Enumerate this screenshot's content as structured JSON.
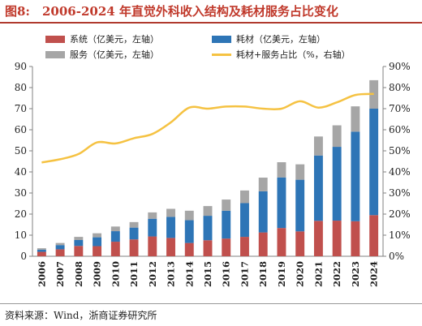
{
  "figure": {
    "title": "图8:　2006-2024 年直觉外科收入结构及耗材服务占比变化",
    "source": "资料来源：Wind，浙商证券研究所"
  },
  "legend": {
    "system": "系统（亿美元，左轴）",
    "consumables": "耗材（亿美元，左轴）",
    "services": "服务（亿美元，左轴）",
    "ratio": "耗材+服务占比（%，右轴）"
  },
  "colors": {
    "system": "#c0504d",
    "consumables": "#2e75b6",
    "services": "#a6a6a6",
    "ratio": "#f5c242",
    "title": "#c0392b"
  },
  "chart_data": {
    "type": "bar",
    "stacked": true,
    "categories": [
      "2006",
      "2007",
      "2008",
      "2009",
      "2010",
      "2011",
      "2012",
      "2013",
      "2014",
      "2015",
      "2016",
      "2017",
      "2018",
      "2019",
      "2020",
      "2021",
      "2022",
      "2023",
      "2024"
    ],
    "series": [
      {
        "name": "系统（亿美元，左轴）",
        "axis": "left",
        "values": [
          2.1,
          3.3,
          4.9,
          4.8,
          6.9,
          8.0,
          9.4,
          8.7,
          6.3,
          7.6,
          8.4,
          9.2,
          11.3,
          13.4,
          11.8,
          16.8,
          16.9,
          16.6,
          19.5
        ]
      },
      {
        "name": "耗材（亿美元，左轴）",
        "axis": "left",
        "values": [
          1.0,
          2.0,
          2.8,
          4.2,
          5.0,
          5.6,
          8.4,
          10.0,
          10.8,
          11.6,
          13.2,
          16.0,
          19.5,
          24.0,
          24.5,
          31.0,
          35.0,
          42.5,
          50.5
        ]
      },
      {
        "name": "服务（亿美元，左轴）",
        "axis": "left",
        "values": [
          0.7,
          1.0,
          1.5,
          1.9,
          2.2,
          2.6,
          3.0,
          3.8,
          4.5,
          4.6,
          5.3,
          6.0,
          6.5,
          7.2,
          7.3,
          9.0,
          10.2,
          12.0,
          13.5
        ]
      },
      {
        "name": "耗材+服务占比（%，右轴）",
        "axis": "right",
        "type": "line",
        "values": [
          44.5,
          46.0,
          48.5,
          54.0,
          53.5,
          56.0,
          58.0,
          63.5,
          70.5,
          70.0,
          71.0,
          71.0,
          70.0,
          70.0,
          73.5,
          70.5,
          73.0,
          76.5,
          77.0
        ]
      }
    ],
    "y_left": {
      "min": 0,
      "max": 90,
      "ticks": [
        "0",
        "10",
        "20",
        "30",
        "40",
        "50",
        "60",
        "70",
        "80",
        "90"
      ]
    },
    "y_right": {
      "min": 0,
      "max": 90,
      "ticks": [
        "0%",
        "10%",
        "20%",
        "30%",
        "40%",
        "50%",
        "60%",
        "70%",
        "80%",
        "90%"
      ]
    },
    "grid": false,
    "legend_position": "top"
  }
}
